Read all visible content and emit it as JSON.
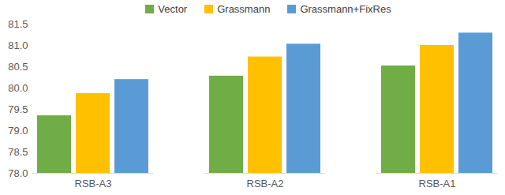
{
  "chart_data": {
    "type": "bar",
    "categories": [
      "RSB-A3",
      "RSB-A2",
      "RSB-A1"
    ],
    "series": [
      {
        "name": "Vector",
        "color": "#70ad47",
        "values": [
          79.35,
          80.28,
          80.52
        ]
      },
      {
        "name": "Grassmann",
        "color": "#ffc000",
        "values": [
          79.87,
          80.73,
          81.0
        ]
      },
      {
        "name": "Grassmann+FixRes",
        "color": "#5b9bd5",
        "values": [
          80.2,
          81.03,
          81.29
        ]
      }
    ],
    "ylim": [
      78,
      81.5
    ],
    "yticks": [
      78,
      78.5,
      79,
      79.5,
      80,
      80.5,
      81,
      81.5
    ],
    "grid": false,
    "legend": "top"
  }
}
